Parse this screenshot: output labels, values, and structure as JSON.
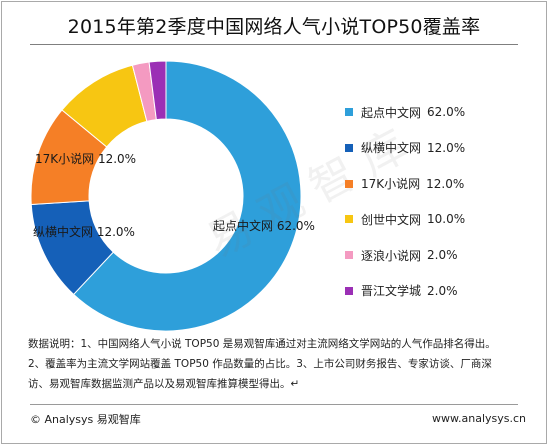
{
  "chart_data": {
    "type": "pie",
    "variant": "donut",
    "title": "2015年第2季度中国网络人气小说TOP50覆盖率",
    "legend_position": "right",
    "series": [
      {
        "name": "起点中文网",
        "value": 62.0,
        "label": "62.0%",
        "color": "#2e9fda",
        "slice_label": "起点中文网 62.0%"
      },
      {
        "name": "纵横中文网",
        "value": 12.0,
        "label": "12.0%",
        "color": "#1560b8",
        "slice_label": "纵横中文网 12.0%"
      },
      {
        "name": "17K小说网",
        "value": 12.0,
        "label": "12.0%",
        "color": "#f57f26",
        "slice_label": "17K小说网 12.0%"
      },
      {
        "name": "创世中文网",
        "value": 10.0,
        "label": "10.0%",
        "color": "#f7c612",
        "slice_label": ""
      },
      {
        "name": "逐浪小说网",
        "value": 2.0,
        "label": "2.0%",
        "color": "#f49ac1",
        "slice_label": ""
      },
      {
        "name": "晋江文学城",
        "value": 2.0,
        "label": "2.0%",
        "color": "#9b2fb5",
        "slice_label": ""
      }
    ]
  },
  "notes": {
    "line1": "数据说明：1、中国网络人气小说 TOP50 是易观智库通过对主流网络文学网站的人气作品排名得出。",
    "line2": "2、覆盖率为主流文学网站覆盖 TOP50 作品数量的占比。3、上市公司财务报告、专家访谈、厂商深",
    "line3": "访、易观智库数据监测产品以及易观智库推算模型得出。↵"
  },
  "footer": {
    "left": "© Analysys 易观智库",
    "right": "www.analysys.cn"
  },
  "watermark": "易观智库"
}
